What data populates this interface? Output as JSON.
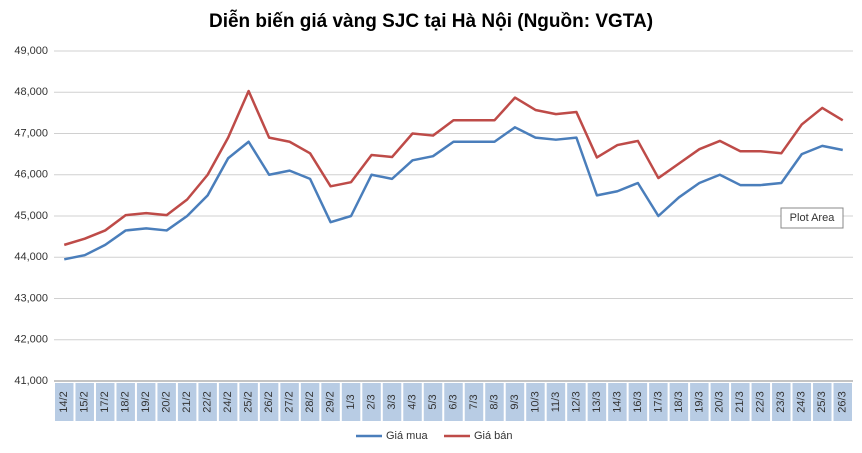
{
  "chart_data": {
    "type": "line",
    "title": "Diễn biến giá vàng SJC tại Hà Nội (Nguồn: VGTA)",
    "categories": [
      "14/2",
      "15/2",
      "17/2",
      "18/2",
      "19/2",
      "20/2",
      "21/2",
      "22/2",
      "24/2",
      "25/2",
      "26/2",
      "27/2",
      "28/2",
      "29/2",
      "1/3",
      "2/3",
      "3/3",
      "4/3",
      "5/3",
      "6/3",
      "7/3",
      "8/3",
      "9/3",
      "10/3",
      "11/3",
      "12/3",
      "13/3",
      "14/3",
      "16/3",
      "17/3",
      "18/3",
      "19/3",
      "20/3",
      "21/3",
      "22/3",
      "23/3",
      "24/3",
      "25/3",
      "26/3"
    ],
    "series": [
      {
        "name": "Giá mua",
        "color": "#4a7ebb",
        "values": [
          43950,
          44050,
          44300,
          44650,
          44700,
          44650,
          45000,
          45500,
          46400,
          46800,
          46000,
          46100,
          45900,
          44850,
          45000,
          46000,
          45900,
          46350,
          46450,
          46800,
          46800,
          46800,
          47150,
          46900,
          46850,
          46900,
          45500,
          45600,
          45800,
          45000,
          45450,
          45800,
          46000,
          45750,
          45750,
          45800,
          46500,
          46700,
          46600
        ]
      },
      {
        "name": "Giá bán",
        "color": "#be4b48",
        "values": [
          44300,
          44450,
          44650,
          45020,
          45070,
          45020,
          45400,
          46000,
          46900,
          48030,
          46900,
          46800,
          46520,
          45720,
          45820,
          46480,
          46430,
          47000,
          46950,
          47320,
          47320,
          47320,
          47870,
          47570,
          47470,
          47520,
          46420,
          46720,
          46820,
          45920,
          46270,
          46620,
          46820,
          46570,
          46570,
          46520,
          47220,
          47620,
          47320
        ]
      }
    ],
    "ylim": [
      41000,
      49000
    ],
    "yticks": [
      {
        "value": 41000,
        "label": "41,000"
      },
      {
        "value": 42000,
        "label": "42,000"
      },
      {
        "value": 43000,
        "label": "43,000"
      },
      {
        "value": 44000,
        "label": "44,000"
      },
      {
        "value": 45000,
        "label": "45,000"
      },
      {
        "value": 46000,
        "label": "46,000"
      },
      {
        "value": 47000,
        "label": "47,000"
      },
      {
        "value": 48000,
        "label": "48,000"
      },
      {
        "value": 49000,
        "label": "49,000"
      }
    ],
    "grid": true,
    "annotation": "Plot Area"
  }
}
